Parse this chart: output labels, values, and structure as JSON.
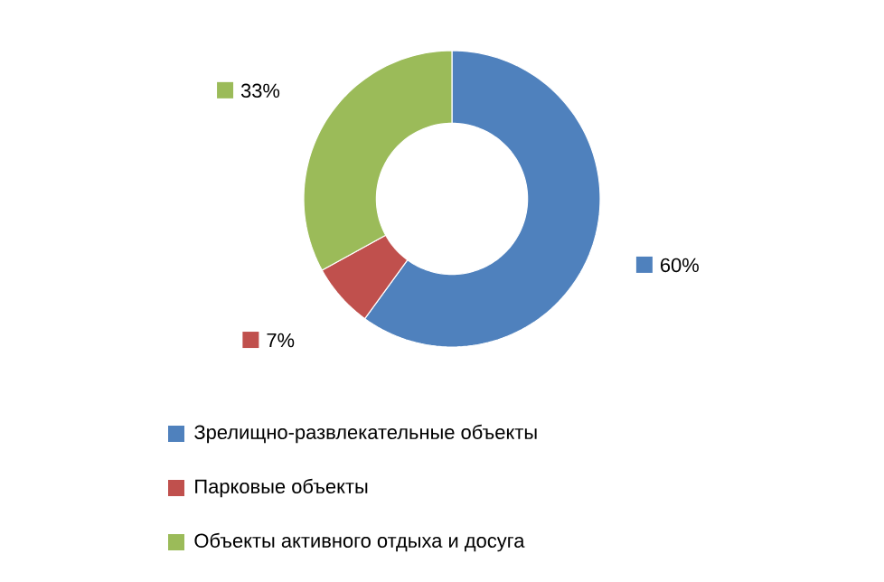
{
  "chart_data": {
    "type": "donut",
    "categories": [
      "Зрелищно-развлекательные объекты",
      "Парковые объекты",
      "Объекты активного отдыха и досуга"
    ],
    "values": [
      60,
      7,
      33
    ],
    "colors": [
      "#4f81bd",
      "#c0504d",
      "#9bbb59"
    ],
    "value_labels": [
      "60%",
      "7%",
      "33%"
    ],
    "legend": "bottom"
  }
}
